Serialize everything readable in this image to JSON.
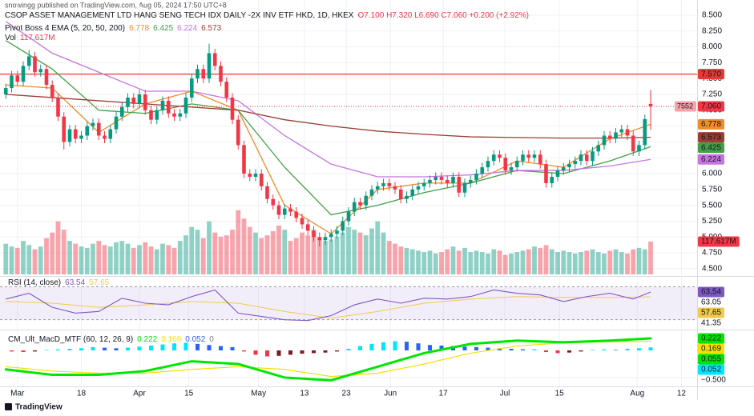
{
  "header": "snowingg published on TradingView.com, Aug 05, 2024 17:50 UTC+8",
  "footer": "TradingView",
  "chart_data": [
    {
      "type": "candlestick",
      "title": "CSOP ASSET MANAGEMENT LTD HANG SENG TECH IDX DAILY -2X INV ETF HKD, 1D, HKEX",
      "ohlc_legend": "O7.100 H7.320 L6.690 C7.060 +0.200 (+2.92%)",
      "indicator": "Pivot Boss 4 EMA (5, 20, 50, 200)",
      "volume_name": "Vol",
      "volume_label": "117.617M",
      "close_label": "7.060",
      "countdown": "7552",
      "up_color": "#089981",
      "down_color": "#f23645",
      "grid": true,
      "xlim": [
        -1,
        119
      ],
      "xticks": [
        {
          "value": 2,
          "label": "Mar"
        },
        {
          "value": 13,
          "label": "18"
        },
        {
          "value": 23,
          "label": "Apr"
        },
        {
          "value": 31.5,
          "label": "15"
        },
        {
          "value": 43.5,
          "label": "May"
        },
        {
          "value": 51.4,
          "label": "13"
        },
        {
          "value": 58.6,
          "label": "23"
        },
        {
          "value": 66.2,
          "label": "Jun"
        },
        {
          "value": 75.3,
          "label": "17"
        },
        {
          "value": 85.9,
          "label": "Jul"
        },
        {
          "value": 95.3,
          "label": "15"
        },
        {
          "value": 108.7,
          "label": "Aug"
        },
        {
          "value": 116.3,
          "label": "12"
        }
      ],
      "ylim": [
        4.41,
        8.55
      ],
      "yticks": [
        {
          "value": 8.5,
          "label": "8.500"
        },
        {
          "value": 8.25,
          "label": "8.250"
        },
        {
          "value": 8.0,
          "label": "8.000"
        },
        {
          "value": 7.75,
          "label": "7.750"
        },
        {
          "value": 7.5,
          "label": "7.500"
        },
        {
          "value": 7.25,
          "label": "7.250"
        },
        {
          "value": 7.0,
          "label": "7.000"
        },
        {
          "value": 6.75,
          "label": "6.750"
        },
        {
          "value": 6.5,
          "label": "6.500"
        },
        {
          "value": 6.25,
          "label": "6.250"
        },
        {
          "value": 6.0,
          "label": "6.000"
        },
        {
          "value": 5.75,
          "label": "5.750"
        },
        {
          "value": 5.5,
          "label": "5.500"
        },
        {
          "value": 5.25,
          "label": "5.250"
        },
        {
          "value": 5.0,
          "label": "5.000"
        },
        {
          "value": 4.75,
          "label": "4.750"
        },
        {
          "value": 4.5,
          "label": "4.500"
        }
      ],
      "hline": {
        "value": 7.57,
        "label": "7.570",
        "color": "#e53935"
      },
      "open": [
        7.25,
        7.35,
        7.55,
        7.45,
        7.7,
        7.85,
        7.6,
        7.65,
        7.4,
        7.2,
        6.9,
        6.5,
        6.7,
        6.55,
        6.6,
        6.75,
        6.8,
        6.6,
        6.55,
        6.7,
        6.9,
        7.05,
        7.2,
        7.1,
        7.25,
        7.0,
        6.85,
        7.0,
        7.15,
        6.95,
        6.9,
        6.95,
        7.2,
        7.5,
        7.65,
        7.5,
        7.9,
        7.7,
        7.45,
        7.2,
        6.85,
        6.45,
        6.0,
        5.95,
        6.0,
        5.8,
        5.6,
        5.5,
        5.35,
        5.45,
        5.4,
        5.3,
        5.2,
        5.1,
        5.0,
        4.95,
        5.0,
        5.05,
        5.1,
        5.25,
        5.4,
        5.55,
        5.5,
        5.65,
        5.75,
        5.8,
        5.85,
        5.8,
        5.75,
        5.6,
        5.65,
        5.75,
        5.8,
        5.85,
        5.9,
        5.95,
        5.9,
        5.85,
        5.95,
        5.7,
        5.85,
        5.9,
        6.0,
        6.1,
        6.2,
        6.3,
        6.25,
        6.05,
        6.1,
        6.2,
        6.3,
        6.25,
        6.3,
        6.15,
        5.85,
        5.95,
        6.05,
        6.1,
        6.15,
        6.2,
        6.3,
        6.2,
        6.35,
        6.45,
        6.6,
        6.55,
        6.65,
        6.7,
        6.6,
        6.35,
        6.45,
        7.1
      ],
      "high": [
        7.42,
        7.62,
        7.62,
        7.77,
        7.95,
        7.92,
        7.72,
        7.72,
        7.47,
        7.27,
        6.97,
        6.77,
        6.77,
        6.67,
        6.82,
        6.87,
        6.87,
        6.67,
        6.77,
        6.97,
        7.12,
        7.27,
        7.27,
        7.32,
        7.32,
        7.07,
        7.07,
        7.22,
        7.22,
        7.02,
        7.02,
        7.27,
        7.57,
        7.72,
        7.72,
        8.05,
        7.97,
        7.77,
        7.52,
        7.27,
        6.92,
        6.52,
        6.07,
        6.07,
        6.07,
        5.87,
        5.67,
        5.57,
        5.52,
        5.52,
        5.47,
        5.37,
        5.27,
        5.17,
        5.07,
        5.07,
        5.12,
        5.17,
        5.32,
        5.47,
        5.62,
        5.62,
        5.72,
        5.82,
        5.87,
        5.92,
        5.92,
        5.87,
        5.82,
        5.72,
        5.82,
        5.87,
        5.92,
        5.97,
        6.02,
        6.02,
        5.97,
        6.02,
        6.02,
        5.92,
        5.97,
        6.07,
        6.17,
        6.27,
        6.37,
        6.37,
        6.32,
        6.17,
        6.27,
        6.37,
        6.37,
        6.37,
        6.37,
        6.22,
        6.02,
        6.12,
        6.17,
        6.22,
        6.27,
        6.37,
        6.37,
        6.42,
        6.52,
        6.67,
        6.67,
        6.72,
        6.77,
        6.77,
        6.67,
        6.52,
        6.93,
        7.32
      ],
      "low": [
        7.18,
        7.28,
        7.38,
        7.38,
        7.63,
        7.53,
        7.53,
        7.33,
        7.13,
        6.83,
        6.38,
        6.43,
        6.48,
        6.48,
        6.53,
        6.68,
        6.53,
        6.48,
        6.48,
        6.63,
        6.83,
        6.98,
        7.03,
        7.03,
        6.93,
        6.78,
        6.78,
        6.93,
        6.88,
        6.83,
        6.83,
        6.88,
        7.13,
        7.43,
        7.43,
        7.43,
        7.63,
        7.38,
        7.13,
        6.78,
        6.38,
        5.93,
        5.88,
        5.88,
        5.73,
        5.53,
        5.43,
        5.28,
        5.28,
        5.33,
        5.23,
        5.13,
        5.03,
        4.93,
        4.85,
        4.88,
        4.93,
        4.98,
        5.03,
        5.18,
        5.33,
        5.43,
        5.43,
        5.58,
        5.68,
        5.73,
        5.73,
        5.68,
        5.53,
        5.53,
        5.58,
        5.68,
        5.73,
        5.78,
        5.83,
        5.83,
        5.78,
        5.78,
        5.63,
        5.63,
        5.78,
        5.83,
        5.93,
        6.03,
        6.13,
        6.18,
        5.98,
        5.98,
        6.03,
        6.13,
        6.18,
        6.18,
        6.08,
        5.78,
        5.78,
        5.88,
        5.98,
        6.03,
        6.08,
        6.13,
        6.13,
        6.13,
        6.28,
        6.38,
        6.48,
        6.48,
        6.58,
        6.53,
        6.28,
        6.28,
        6.38,
        6.69
      ],
      "close": [
        7.35,
        7.55,
        7.45,
        7.7,
        7.85,
        7.6,
        7.65,
        7.4,
        7.2,
        6.9,
        6.5,
        6.7,
        6.55,
        6.6,
        6.75,
        6.8,
        6.6,
        6.55,
        6.7,
        6.9,
        7.05,
        7.2,
        7.1,
        7.25,
        7.0,
        6.85,
        7.0,
        7.15,
        6.95,
        6.9,
        6.95,
        7.2,
        7.5,
        7.65,
        7.5,
        7.9,
        7.7,
        7.45,
        7.2,
        6.85,
        6.45,
        6.0,
        5.95,
        6.0,
        5.8,
        5.6,
        5.5,
        5.35,
        5.45,
        5.4,
        5.3,
        5.2,
        5.1,
        5.0,
        4.95,
        5.0,
        5.05,
        5.1,
        5.25,
        5.4,
        5.55,
        5.5,
        5.65,
        5.75,
        5.8,
        5.85,
        5.8,
        5.75,
        5.6,
        5.65,
        5.75,
        5.8,
        5.85,
        5.9,
        5.95,
        5.9,
        5.85,
        5.95,
        5.7,
        5.85,
        5.9,
        6.0,
        6.1,
        6.2,
        6.3,
        6.25,
        6.05,
        6.1,
        6.2,
        6.3,
        6.25,
        6.3,
        6.15,
        5.85,
        5.95,
        6.05,
        6.1,
        6.15,
        6.2,
        6.3,
        6.2,
        6.35,
        6.45,
        6.6,
        6.55,
        6.65,
        6.7,
        6.6,
        6.35,
        6.45,
        6.86,
        7.06
      ],
      "volume_ylim": [
        0,
        940
      ],
      "volume": [
        110,
        100,
        95,
        120,
        105,
        90,
        100,
        130,
        150,
        190,
        160,
        120,
        110,
        100,
        95,
        110,
        120,
        105,
        100,
        115,
        120,
        110,
        95,
        105,
        115,
        100,
        90,
        110,
        105,
        95,
        120,
        140,
        170,
        160,
        130,
        190,
        150,
        135,
        140,
        160,
        230,
        200,
        170,
        150,
        130,
        140,
        155,
        175,
        160,
        120,
        130,
        150,
        140,
        160,
        130,
        120,
        125,
        135,
        150,
        170,
        160,
        150,
        140,
        165,
        190,
        150,
        120,
        110,
        100,
        95,
        90,
        85,
        80,
        85,
        75,
        80,
        90,
        100,
        85,
        95,
        80,
        85,
        80,
        75,
        90,
        85,
        70,
        75,
        80,
        85,
        90,
        100,
        95,
        105,
        90,
        80,
        85,
        80,
        75,
        80,
        85,
        90,
        80,
        75,
        85,
        90,
        80,
        75,
        90,
        95,
        90,
        117.617
      ],
      "series": [
        {
          "color": "#ef8c2b",
          "value_label": "6.778",
          "x": [
            0,
            8,
            16,
            24,
            32,
            40,
            48,
            56,
            64,
            72,
            80,
            88,
            96,
            104,
            111
          ],
          "values": [
            7.4,
            7.35,
            6.65,
            7.1,
            7.3,
            7.0,
            5.5,
            5.05,
            5.75,
            5.85,
            5.85,
            6.2,
            6.1,
            6.55,
            6.778
          ]
        },
        {
          "color": "#43a047",
          "value_label": "6.425",
          "x": [
            0,
            8,
            16,
            24,
            32,
            40,
            48,
            56,
            64,
            72,
            80,
            88,
            96,
            104,
            111
          ],
          "values": [
            8.1,
            7.65,
            7.0,
            6.95,
            7.1,
            7.0,
            6.1,
            5.35,
            5.5,
            5.7,
            5.85,
            6.05,
            6.0,
            6.2,
            6.425
          ]
        },
        {
          "color": "#c774e0",
          "value_label": "6.224",
          "x": [
            0,
            8,
            16,
            24,
            32,
            40,
            48,
            56,
            64,
            72,
            80,
            88,
            96,
            104,
            111
          ],
          "values": [
            8.4,
            7.9,
            7.6,
            7.3,
            7.3,
            7.15,
            6.6,
            6.15,
            5.95,
            5.95,
            5.98,
            6.05,
            6.05,
            6.12,
            6.224
          ]
        },
        {
          "color": "#9c3d33",
          "value_label": "6.573",
          "x": [
            0,
            8,
            16,
            24,
            32,
            40,
            48,
            56,
            64,
            72,
            80,
            88,
            96,
            104,
            111
          ],
          "values": [
            7.25,
            7.2,
            7.15,
            7.1,
            7.05,
            7.0,
            6.85,
            6.75,
            6.67,
            6.62,
            6.58,
            6.57,
            6.56,
            6.56,
            6.573
          ]
        }
      ]
    },
    {
      "type": "line",
      "title": "RSI (14, close)",
      "ylim": [
        20,
        80
      ],
      "band": [
        30,
        70
      ],
      "yticks": [
        63.05,
        41.35
      ],
      "series": [
        {
          "color": "#7e57c2",
          "value_label": "63.54",
          "x": [
            0,
            4,
            8,
            12,
            16,
            20,
            24,
            28,
            32,
            36,
            40,
            44,
            48,
            52,
            56,
            60,
            64,
            68,
            72,
            76,
            80,
            84,
            88,
            92,
            96,
            100,
            104,
            108,
            111
          ],
          "values": [
            55,
            62,
            45,
            38,
            40,
            56,
            50,
            48,
            58,
            66,
            38,
            34,
            30,
            29,
            35,
            48,
            55,
            50,
            56,
            55,
            58,
            66,
            62,
            60,
            52,
            58,
            62,
            55,
            63.54
          ]
        },
        {
          "color": "#f2c94c",
          "value_label": "57.65",
          "x": [
            0,
            8,
            16,
            24,
            32,
            40,
            48,
            56,
            64,
            72,
            80,
            88,
            96,
            104,
            111
          ],
          "values": [
            52,
            50,
            45,
            48,
            52,
            50,
            40,
            32,
            40,
            50,
            55,
            58,
            57,
            57,
            57.65
          ]
        }
      ]
    },
    {
      "type": "macd",
      "title": "CM_Ult_MacD_MTF (60, 12, 26, 9)",
      "legend_extra": "0",
      "ylim": [
        -0.648,
        0.339
      ],
      "yticks": [
        {
          "value": -0.5,
          "label": "−0.500"
        }
      ],
      "histogram": {
        "value_label": "0.055",
        "colors": {
          "up_rising": "#00e5ff",
          "up_falling": "#2962ff",
          "down_falling": "#f23645",
          "down_rising": "#801922"
        },
        "values": [
          -0.02,
          -0.03,
          -0.02,
          0.01,
          0.02,
          0.03,
          0.04,
          0.06,
          0.05,
          0.04,
          0.05,
          0.07,
          0.09,
          0.11,
          0.13,
          0.14,
          0.12,
          0.1,
          0.08,
          0.06,
          -0.02,
          -0.08,
          -0.11,
          -0.1,
          -0.08,
          -0.06,
          -0.05,
          -0.04,
          -0.02,
          0.03,
          0.08,
          0.12,
          0.15,
          0.17,
          0.16,
          0.13,
          0.1,
          0.09,
          0.08,
          0.07,
          0.06,
          0.05,
          0.04,
          0.03,
          0.02,
          0.02,
          -0.03,
          -0.05,
          -0.04,
          -0.02,
          0.01,
          0.02,
          0.01,
          0.03,
          0.04,
          0.055
        ]
      },
      "labels": [
        {
          "value": 0.052,
          "label": "0.052",
          "color": "#00e5ff"
        }
      ],
      "series": [
        {
          "color": "#00e600",
          "value_label": "0.222",
          "x": [
            0,
            8,
            16,
            24,
            32,
            40,
            48,
            56,
            64,
            72,
            80,
            88,
            96,
            104,
            111
          ],
          "values": [
            -0.35,
            -0.45,
            -0.45,
            -0.38,
            -0.2,
            -0.25,
            -0.5,
            -0.55,
            -0.3,
            -0.05,
            0.12,
            0.18,
            0.15,
            0.18,
            0.222
          ]
        },
        {
          "color": "#f5e000",
          "value_label": "0.169",
          "x": [
            0,
            8,
            16,
            24,
            32,
            40,
            48,
            56,
            64,
            72,
            80,
            88,
            96,
            104,
            111
          ],
          "values": [
            -0.3,
            -0.38,
            -0.42,
            -0.42,
            -0.35,
            -0.3,
            -0.35,
            -0.48,
            -0.42,
            -0.25,
            -0.05,
            0.08,
            0.14,
            0.16,
            0.169
          ]
        }
      ]
    }
  ]
}
